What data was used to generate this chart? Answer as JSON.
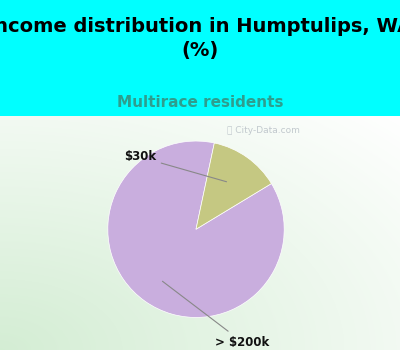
{
  "title": "Income distribution in Humptulips, WA\n(%)",
  "subtitle": "Multirace residents",
  "title_color": "#000000",
  "subtitle_color": "#2e9e8e",
  "background_top": "#00FFFF",
  "slices": [
    {
      "label": "> $200k",
      "value": 87,
      "color": "#C9AEDE"
    },
    {
      "label": "$30k",
      "value": 13,
      "color": "#C5C882"
    }
  ],
  "watermark": "ⓘ City-Data.com",
  "title_fontsize": 14,
  "subtitle_fontsize": 11,
  "startangle": 78
}
